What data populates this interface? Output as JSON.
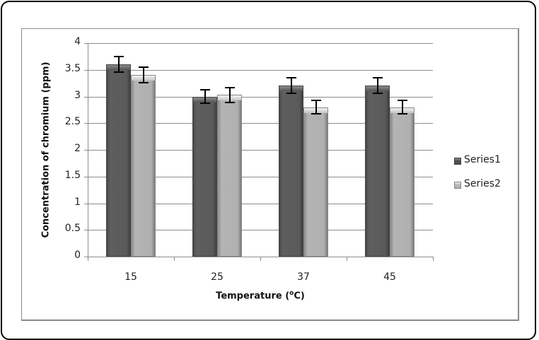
{
  "chart_data": {
    "type": "bar",
    "title": "",
    "categories": [
      "15",
      "25",
      "37",
      "45"
    ],
    "series": [
      {
        "name": "Series1",
        "values": [
          3.6,
          3.0,
          3.2,
          3.2
        ],
        "errors": [
          0.16,
          0.14,
          0.16,
          0.16
        ],
        "color": "#555555"
      },
      {
        "name": "Series2",
        "values": [
          3.4,
          3.03,
          2.8,
          2.8
        ],
        "errors": [
          0.16,
          0.15,
          0.14,
          0.14
        ],
        "color": "#b4b4b4"
      }
    ],
    "xlabel": "Temperature (°C)",
    "ylabel": "Concentration of chromium (ppm)",
    "ylim": [
      0,
      4
    ],
    "yticks": [
      "0",
      "0.5",
      "1",
      "1.5",
      "2",
      "2.5",
      "3",
      "3.5",
      "4"
    ],
    "grid": true,
    "legend_position": "right"
  },
  "axes": {
    "x_title_main": "Temperature (",
    "x_title_sup": "o",
    "x_title_end": "C)",
    "y_title": "Concentration of chromium (ppm)"
  },
  "legend": {
    "items": [
      {
        "label": "Series1"
      },
      {
        "label": "Series2"
      }
    ]
  }
}
